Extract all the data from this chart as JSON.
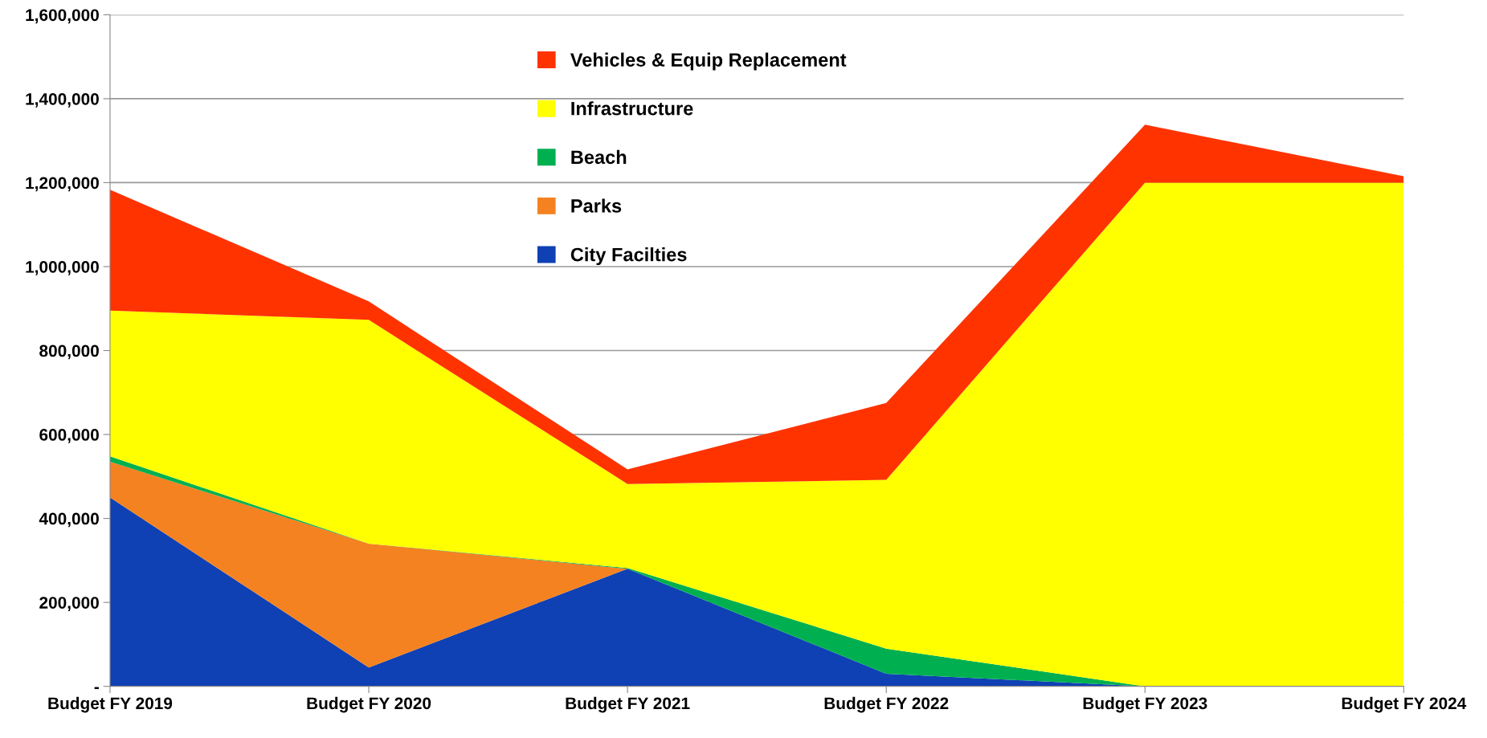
{
  "chart_data": {
    "type": "area",
    "stacked": true,
    "categories": [
      "Budget FY 2019",
      "Budget FY 2020",
      "Budget FY 2021",
      "Budget FY 2022",
      "Budget FY 2023",
      "Budget FY 2024"
    ],
    "series": [
      {
        "name": "City Facilties",
        "color": "#0f41b4",
        "values": [
          450000,
          45000,
          280000,
          30000,
          0,
          0
        ]
      },
      {
        "name": "Parks",
        "color": "#f58220",
        "values": [
          85000,
          295000,
          0,
          0,
          0,
          0
        ]
      },
      {
        "name": "Beach",
        "color": "#00b050",
        "values": [
          13000,
          0,
          2000,
          60000,
          0,
          0
        ]
      },
      {
        "name": "Infrastructure",
        "color": "#ffff00",
        "values": [
          347000,
          533000,
          200000,
          402000,
          1200000,
          1200000
        ]
      },
      {
        "name": "Vehicles & Equip Replacement",
        "color": "#ff3300",
        "values": [
          288000,
          44000,
          35000,
          183000,
          138000,
          15000
        ]
      }
    ],
    "ylim": [
      0,
      1600000
    ],
    "yticks": [
      {
        "value": 0,
        "label": "-"
      },
      {
        "value": 200000,
        "label": "200,000"
      },
      {
        "value": 400000,
        "label": "400,000"
      },
      {
        "value": 600000,
        "label": "600,000"
      },
      {
        "value": 800000,
        "label": "800,000"
      },
      {
        "value": 1000000,
        "label": "1,000,000"
      },
      {
        "value": 1200000,
        "label": "1,200,000"
      },
      {
        "value": 1400000,
        "label": "1,400,000"
      },
      {
        "value": 1600000,
        "label": "1,600,000"
      }
    ],
    "grid": "y",
    "legend": "top"
  }
}
